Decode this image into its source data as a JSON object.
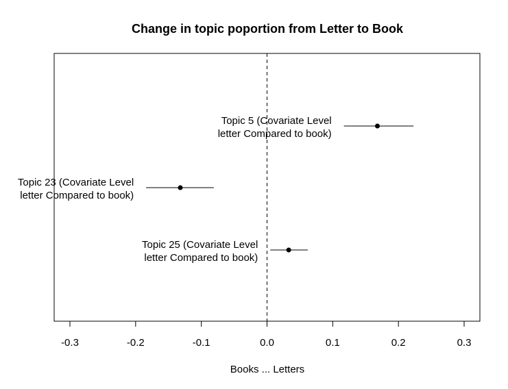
{
  "chart_data": {
    "type": "scatter",
    "title": "Change in topic poportion from Letter to Book",
    "xlabel": "Books ... Letters",
    "ylabel": "",
    "xlim": [
      -0.3,
      0.3
    ],
    "xticks": [
      "-0.3",
      "-0.2",
      "-0.1",
      "0.0",
      "0.1",
      "0.2",
      "0.3"
    ],
    "reference_line": 0,
    "grid": false,
    "points": [
      {
        "label_line1": "Topic 5 (Covariate Level",
        "label_line2": "letter Compared to book)",
        "estimate": 0.168,
        "ci_low": 0.117,
        "ci_high": 0.223
      },
      {
        "label_line1": "Topic 23 (Covariate Level",
        "label_line2": "letter Compared to book)",
        "estimate": -0.132,
        "ci_low": -0.184,
        "ci_high": -0.081
      },
      {
        "label_line1": "Topic 25 (Covariate Level",
        "label_line2": "letter Compared to book)",
        "estimate": 0.033,
        "ci_low": 0.005,
        "ci_high": 0.062
      }
    ]
  }
}
